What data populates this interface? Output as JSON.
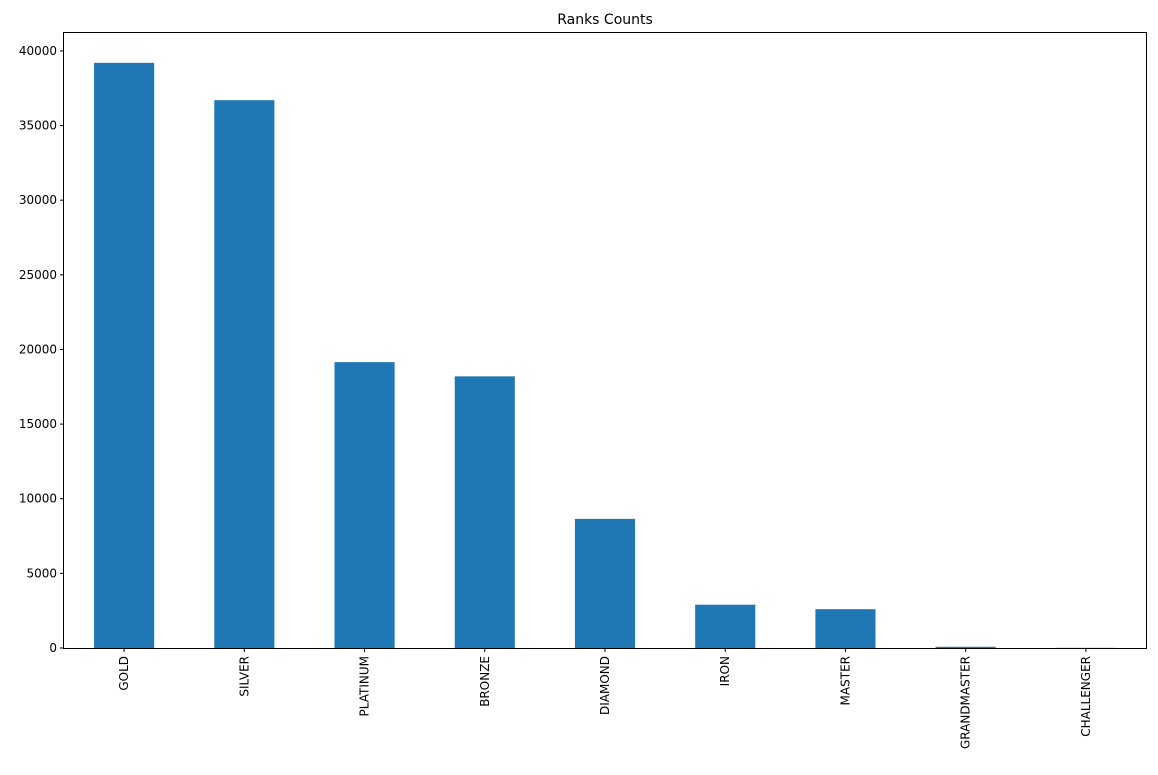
{
  "chart_data": {
    "type": "bar",
    "title": "Ranks Counts",
    "xlabel": "",
    "ylabel": "",
    "categories": [
      "GOLD",
      "SILVER",
      "PLATINUM",
      "BRONZE",
      "DIAMOND",
      "IRON",
      "MASTER",
      "GRANDMASTER",
      "CHALLENGER"
    ],
    "values": [
      39200,
      36700,
      19150,
      18200,
      8650,
      2900,
      2600,
      80,
      10
    ],
    "ylim": [
      0,
      41200
    ],
    "yticks": [
      0,
      5000,
      10000,
      15000,
      20000,
      25000,
      30000,
      35000,
      40000
    ],
    "bar_color": "#1f77b4",
    "grid": false,
    "legend": "none"
  }
}
